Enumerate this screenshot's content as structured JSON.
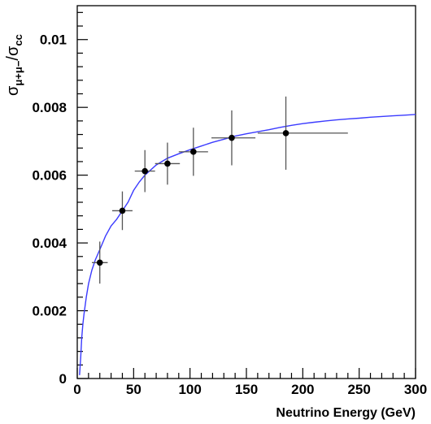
{
  "chart_data": {
    "type": "scatter",
    "xlabel": "Neutrino Energy (GeV)",
    "ylabel": {
      "symbol": "σ",
      "numerator_sub": "μ+μ−",
      "slash": "/",
      "denominator_sub": "cc"
    },
    "xlim": [
      0,
      300
    ],
    "ylim": [
      0,
      0.011
    ],
    "x_ticks": [
      0,
      50,
      100,
      150,
      200,
      250,
      300
    ],
    "x_tick_labels": [
      "0",
      "50",
      "100",
      "150",
      "200",
      "250",
      "300"
    ],
    "y_ticks": [
      0,
      0.002,
      0.004,
      0.006,
      0.008,
      0.01
    ],
    "y_tick_labels": [
      "0",
      "0.002",
      "0.004",
      "0.006",
      "0.008",
      "0.01"
    ],
    "grid": false,
    "series": [
      {
        "kind": "points-with-errors",
        "color": "#000000",
        "points": [
          {
            "x": 20,
            "y": 0.00342,
            "xerr_lo": 7,
            "xerr_hi": 7,
            "yerr": 0.00062
          },
          {
            "x": 40,
            "y": 0.00495,
            "xerr_lo": 9,
            "xerr_hi": 9,
            "yerr": 0.00057
          },
          {
            "x": 60,
            "y": 0.00612,
            "xerr_lo": 9,
            "xerr_hi": 9,
            "yerr": 0.00062
          },
          {
            "x": 80,
            "y": 0.00634,
            "xerr_lo": 11,
            "xerr_hi": 11,
            "yerr": 0.00062
          },
          {
            "x": 103,
            "y": 0.00669,
            "xerr_lo": 13,
            "xerr_hi": 13,
            "yerr": 0.00071
          },
          {
            "x": 137,
            "y": 0.0071,
            "xerr_lo": 18,
            "xerr_hi": 21,
            "yerr": 0.00081
          },
          {
            "x": 185,
            "y": 0.00724,
            "xerr_lo": 25,
            "xerr_hi": 55,
            "yerr": 0.00108
          }
        ]
      },
      {
        "kind": "curve",
        "color": "#3b3bff",
        "x": [
          2,
          3,
          4,
          5,
          6,
          8,
          10,
          13,
          16,
          20,
          25,
          30,
          35,
          40,
          45,
          50,
          55,
          60,
          70,
          80,
          90,
          100,
          110,
          120,
          130,
          140,
          150,
          160,
          170,
          180,
          190,
          200,
          210,
          220,
          230,
          240,
          250,
          260,
          270,
          280,
          290,
          300
        ],
        "y": [
          0.0001,
          0.0006,
          0.0012,
          0.0016,
          0.0019,
          0.0024,
          0.0028,
          0.0032,
          0.0035,
          0.0038,
          0.0042,
          0.0045,
          0.0047,
          0.00495,
          0.0052,
          0.00555,
          0.0058,
          0.006,
          0.0063,
          0.0065,
          0.00663,
          0.00675,
          0.00686,
          0.00697,
          0.00706,
          0.00715,
          0.00722,
          0.00728,
          0.00734,
          0.00741,
          0.00747,
          0.00752,
          0.00756,
          0.0076,
          0.00763,
          0.00766,
          0.00768,
          0.00771,
          0.00773,
          0.00775,
          0.00777,
          0.00779
        ]
      }
    ]
  }
}
